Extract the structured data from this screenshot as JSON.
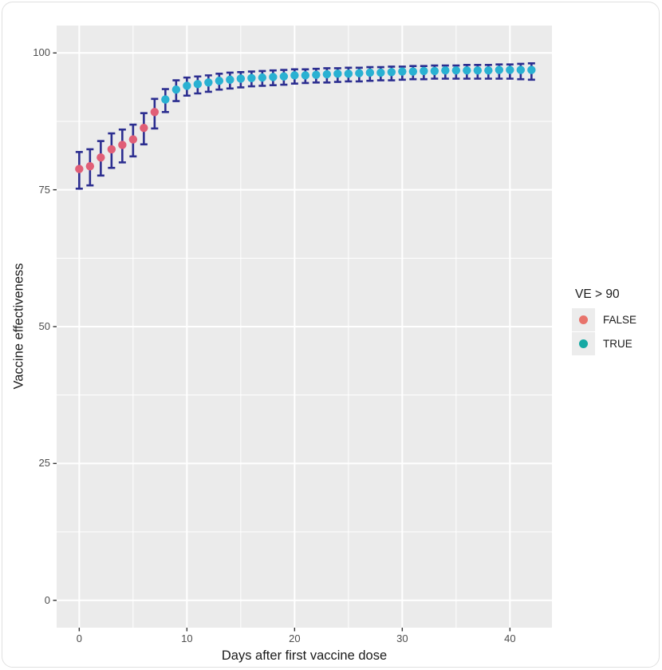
{
  "chart_data": {
    "type": "scatter",
    "subtype": "pointrange-errorbars",
    "title": "",
    "xlabel": "Days after first vaccine dose",
    "ylabel": "Vaccine effectiveness",
    "xlim": [
      -2.1,
      43.9
    ],
    "ylim": [
      -5,
      105
    ],
    "x_ticks": [
      0,
      10,
      20,
      30,
      40
    ],
    "y_ticks": [
      0,
      25,
      50,
      75,
      100
    ],
    "x_minor_ticks": [
      5,
      15,
      25,
      35
    ],
    "y_minor_ticks": [
      12.5,
      37.5,
      62.5,
      87.5
    ],
    "grid": true,
    "legend": {
      "title": "VE > 90",
      "position": "right",
      "items": [
        {
          "label": "FALSE",
          "color": "#E8736B"
        },
        {
          "label": "TRUE",
          "color": "#16A9A4"
        }
      ]
    },
    "points": [
      {
        "day": 0,
        "ve": 78.8,
        "lo": 75.2,
        "hi": 81.9,
        "ve_gt_90": false
      },
      {
        "day": 1,
        "ve": 79.3,
        "lo": 75.8,
        "hi": 82.4,
        "ve_gt_90": false
      },
      {
        "day": 2,
        "ve": 80.9,
        "lo": 77.6,
        "hi": 83.9,
        "ve_gt_90": false
      },
      {
        "day": 3,
        "ve": 82.4,
        "lo": 79.0,
        "hi": 85.3,
        "ve_gt_90": false
      },
      {
        "day": 4,
        "ve": 83.2,
        "lo": 80.0,
        "hi": 86.0,
        "ve_gt_90": false
      },
      {
        "day": 5,
        "ve": 84.2,
        "lo": 81.1,
        "hi": 86.9,
        "ve_gt_90": false
      },
      {
        "day": 6,
        "ve": 86.3,
        "lo": 83.3,
        "hi": 89.0,
        "ve_gt_90": false
      },
      {
        "day": 7,
        "ve": 89.2,
        "lo": 86.2,
        "hi": 91.6,
        "ve_gt_90": false
      },
      {
        "day": 8,
        "ve": 91.5,
        "lo": 89.2,
        "hi": 93.4,
        "ve_gt_90": true
      },
      {
        "day": 9,
        "ve": 93.3,
        "lo": 91.2,
        "hi": 95.0,
        "ve_gt_90": true
      },
      {
        "day": 10,
        "ve": 94.0,
        "lo": 92.2,
        "hi": 95.5,
        "ve_gt_90": true
      },
      {
        "day": 11,
        "ve": 94.3,
        "lo": 92.6,
        "hi": 95.7,
        "ve_gt_90": true
      },
      {
        "day": 12,
        "ve": 94.6,
        "lo": 92.9,
        "hi": 95.9,
        "ve_gt_90": true
      },
      {
        "day": 13,
        "ve": 94.9,
        "lo": 93.3,
        "hi": 96.2,
        "ve_gt_90": true
      },
      {
        "day": 14,
        "ve": 95.1,
        "lo": 93.5,
        "hi": 96.4,
        "ve_gt_90": true
      },
      {
        "day": 15,
        "ve": 95.3,
        "lo": 93.7,
        "hi": 96.5,
        "ve_gt_90": true
      },
      {
        "day": 16,
        "ve": 95.4,
        "lo": 93.9,
        "hi": 96.6,
        "ve_gt_90": true
      },
      {
        "day": 17,
        "ve": 95.5,
        "lo": 94.0,
        "hi": 96.7,
        "ve_gt_90": true
      },
      {
        "day": 18,
        "ve": 95.6,
        "lo": 94.1,
        "hi": 96.8,
        "ve_gt_90": true
      },
      {
        "day": 19,
        "ve": 95.7,
        "lo": 94.2,
        "hi": 96.9,
        "ve_gt_90": true
      },
      {
        "day": 20,
        "ve": 95.9,
        "lo": 94.4,
        "hi": 97.0,
        "ve_gt_90": true
      },
      {
        "day": 21,
        "ve": 95.9,
        "lo": 94.5,
        "hi": 97.0,
        "ve_gt_90": true
      },
      {
        "day": 22,
        "ve": 96.0,
        "lo": 94.6,
        "hi": 97.1,
        "ve_gt_90": true
      },
      {
        "day": 23,
        "ve": 96.1,
        "lo": 94.6,
        "hi": 97.2,
        "ve_gt_90": true
      },
      {
        "day": 24,
        "ve": 96.2,
        "lo": 94.7,
        "hi": 97.2,
        "ve_gt_90": true
      },
      {
        "day": 25,
        "ve": 96.2,
        "lo": 94.8,
        "hi": 97.3,
        "ve_gt_90": true
      },
      {
        "day": 26,
        "ve": 96.3,
        "lo": 94.8,
        "hi": 97.3,
        "ve_gt_90": true
      },
      {
        "day": 27,
        "ve": 96.4,
        "lo": 94.9,
        "hi": 97.4,
        "ve_gt_90": true
      },
      {
        "day": 28,
        "ve": 96.4,
        "lo": 95.0,
        "hi": 97.4,
        "ve_gt_90": true
      },
      {
        "day": 29,
        "ve": 96.5,
        "lo": 95.0,
        "hi": 97.5,
        "ve_gt_90": true
      },
      {
        "day": 30,
        "ve": 96.6,
        "lo": 95.1,
        "hi": 97.5,
        "ve_gt_90": true
      },
      {
        "day": 31,
        "ve": 96.6,
        "lo": 95.2,
        "hi": 97.6,
        "ve_gt_90": true
      },
      {
        "day": 32,
        "ve": 96.7,
        "lo": 95.2,
        "hi": 97.6,
        "ve_gt_90": true
      },
      {
        "day": 33,
        "ve": 96.7,
        "lo": 95.3,
        "hi": 97.7,
        "ve_gt_90": true
      },
      {
        "day": 34,
        "ve": 96.8,
        "lo": 95.3,
        "hi": 97.7,
        "ve_gt_90": true
      },
      {
        "day": 35,
        "ve": 96.8,
        "lo": 95.3,
        "hi": 97.7,
        "ve_gt_90": true
      },
      {
        "day": 36,
        "ve": 96.8,
        "lo": 95.3,
        "hi": 97.8,
        "ve_gt_90": true
      },
      {
        "day": 37,
        "ve": 96.8,
        "lo": 95.3,
        "hi": 97.8,
        "ve_gt_90": true
      },
      {
        "day": 38,
        "ve": 96.8,
        "lo": 95.3,
        "hi": 97.8,
        "ve_gt_90": true
      },
      {
        "day": 39,
        "ve": 96.9,
        "lo": 95.3,
        "hi": 97.9,
        "ve_gt_90": true
      },
      {
        "day": 40,
        "ve": 96.9,
        "lo": 95.3,
        "hi": 97.9,
        "ve_gt_90": true
      },
      {
        "day": 41,
        "ve": 96.9,
        "lo": 95.2,
        "hi": 98.0,
        "ve_gt_90": true
      },
      {
        "day": 42,
        "ve": 96.9,
        "lo": 95.1,
        "hi": 98.1,
        "ve_gt_90": true
      }
    ],
    "colors": {
      "panel_bg": "#EBEBEB",
      "grid": "#FFFFFF",
      "error_bar": "#2C2E90",
      "point_false": "#E15F77",
      "point_true": "#29B1D2",
      "tick_mark": "#333333",
      "tick_label": "#4D4D4D",
      "axis_title": "#1A1A1A",
      "legend_key_bg": "#ECECEC",
      "card_border": "#E0E0E0"
    }
  }
}
